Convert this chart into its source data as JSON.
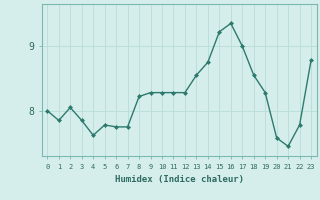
{
  "x": [
    0,
    1,
    2,
    3,
    4,
    5,
    6,
    7,
    8,
    9,
    10,
    11,
    12,
    13,
    14,
    15,
    16,
    17,
    18,
    19,
    20,
    21,
    22,
    23
  ],
  "y": [
    8.0,
    7.85,
    8.05,
    7.85,
    7.62,
    7.78,
    7.75,
    7.75,
    8.22,
    8.28,
    8.28,
    8.28,
    8.28,
    8.55,
    8.75,
    9.22,
    9.35,
    9.0,
    8.55,
    8.28,
    7.58,
    7.45,
    7.78,
    8.78
  ],
  "line_color": "#2d7a6e",
  "marker": "D",
  "marker_size": 2.0,
  "line_width": 1.0,
  "background_color": "#d5eeeb",
  "grid_color": "#b8ddd9",
  "xlabel": "Humidex (Indice chaleur)",
  "yticks": [
    8,
    9
  ],
  "xticks": [
    0,
    1,
    2,
    3,
    4,
    5,
    6,
    7,
    8,
    9,
    10,
    11,
    12,
    13,
    14,
    15,
    16,
    17,
    18,
    19,
    20,
    21,
    22,
    23
  ],
  "ylim": [
    7.3,
    9.65
  ],
  "xlim": [
    -0.5,
    23.5
  ]
}
